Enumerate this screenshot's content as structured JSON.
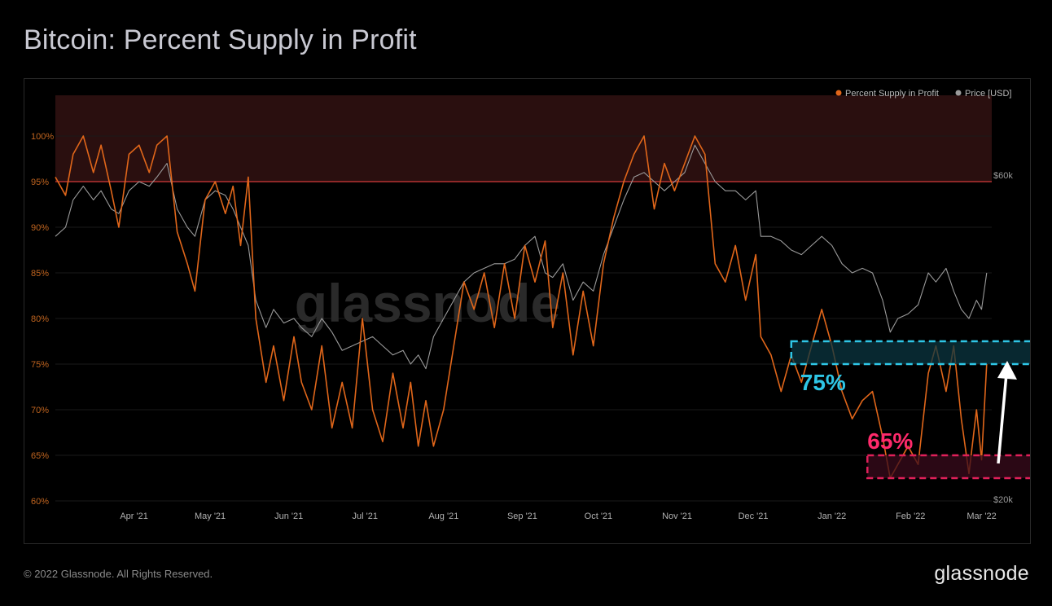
{
  "header": {
    "title": "Bitcoin: Percent Supply in Profit"
  },
  "footer": {
    "copyright": "© 2022 Glassnode. All Rights Reserved.",
    "logo": "glassnode"
  },
  "watermark": "glassnode",
  "colors": {
    "supply": "#e0661a",
    "price": "#9a9a9a",
    "band_high": "#2a0f0f",
    "line_95": "#d33a3a",
    "box_75": "#2ec6e6",
    "box_75_fill": "#0b3640",
    "box_65": "#e0205a",
    "box_65_fill": "#3a0b1c",
    "label_75": "#2ec6e6",
    "label_65": "#ff2a6b"
  },
  "chart_data": {
    "type": "line",
    "legend": [
      {
        "name": "Percent Supply in Profit",
        "color": "#e0661a"
      },
      {
        "name": "Price [USD]",
        "color": "#9a9a9a"
      }
    ],
    "legend_position": "top-right",
    "x_range": [
      "2021-03-01",
      "2022-03-05"
    ],
    "x_ticks": [
      "Apr '21",
      "May '21",
      "Jun '21",
      "Jul '21",
      "Aug '21",
      "Sep '21",
      "Oct '21",
      "Nov '21",
      "Dec '21",
      "Jan '22",
      "Feb '22",
      "Mar '22"
    ],
    "y_left": {
      "range": [
        60,
        100
      ],
      "ticks": [
        "60%",
        "65%",
        "70%",
        "75%",
        "80%",
        "85%",
        "90%",
        "95%",
        "100%"
      ]
    },
    "y_right": {
      "scale": "log",
      "ticks": [
        "$20k",
        "$60k"
      ]
    },
    "grid": true,
    "annotations": {
      "band_95_100": [
        95,
        100
      ],
      "box_75": {
        "label": "75%",
        "range": [
          75,
          77.5
        ],
        "start": "2021-12-16"
      },
      "box_65": {
        "label": "65%",
        "range": [
          62.5,
          65
        ],
        "start": "2022-01-15"
      },
      "arrow": "up"
    },
    "series": [
      {
        "name": "Percent Supply in Profit",
        "points": [
          [
            "2021-03-01",
            95.5
          ],
          [
            "2021-03-05",
            93.5
          ],
          [
            "2021-03-08",
            98
          ],
          [
            "2021-03-12",
            100
          ],
          [
            "2021-03-16",
            96
          ],
          [
            "2021-03-19",
            99
          ],
          [
            "2021-03-23",
            94
          ],
          [
            "2021-03-26",
            90
          ],
          [
            "2021-03-30",
            98
          ],
          [
            "2021-04-03",
            99
          ],
          [
            "2021-04-07",
            96
          ],
          [
            "2021-04-10",
            99
          ],
          [
            "2021-04-14",
            100
          ],
          [
            "2021-04-18",
            89.5
          ],
          [
            "2021-04-22",
            86
          ],
          [
            "2021-04-25",
            83
          ],
          [
            "2021-04-29",
            93
          ],
          [
            "2021-05-03",
            95
          ],
          [
            "2021-05-07",
            91.5
          ],
          [
            "2021-05-10",
            94.5
          ],
          [
            "2021-05-13",
            88
          ],
          [
            "2021-05-16",
            95.5
          ],
          [
            "2021-05-19",
            80
          ],
          [
            "2021-05-23",
            73
          ],
          [
            "2021-05-26",
            77
          ],
          [
            "2021-05-30",
            71
          ],
          [
            "2021-06-03",
            78
          ],
          [
            "2021-06-06",
            73
          ],
          [
            "2021-06-10",
            70
          ],
          [
            "2021-06-14",
            77
          ],
          [
            "2021-06-18",
            68
          ],
          [
            "2021-06-22",
            73
          ],
          [
            "2021-06-26",
            68
          ],
          [
            "2021-06-30",
            80
          ],
          [
            "2021-07-04",
            70
          ],
          [
            "2021-07-08",
            66.5
          ],
          [
            "2021-07-12",
            74
          ],
          [
            "2021-07-16",
            68
          ],
          [
            "2021-07-19",
            73
          ],
          [
            "2021-07-22",
            66
          ],
          [
            "2021-07-25",
            71
          ],
          [
            "2021-07-28",
            66
          ],
          [
            "2021-08-01",
            70
          ],
          [
            "2021-08-05",
            77
          ],
          [
            "2021-08-09",
            84
          ],
          [
            "2021-08-13",
            81
          ],
          [
            "2021-08-17",
            85
          ],
          [
            "2021-08-21",
            79
          ],
          [
            "2021-08-25",
            86
          ],
          [
            "2021-08-29",
            80
          ],
          [
            "2021-09-02",
            88
          ],
          [
            "2021-09-06",
            84
          ],
          [
            "2021-09-10",
            88.5
          ],
          [
            "2021-09-13",
            79
          ],
          [
            "2021-09-17",
            85
          ],
          [
            "2021-09-21",
            76
          ],
          [
            "2021-09-25",
            83
          ],
          [
            "2021-09-29",
            77
          ],
          [
            "2021-10-03",
            86
          ],
          [
            "2021-10-07",
            91
          ],
          [
            "2021-10-11",
            95
          ],
          [
            "2021-10-15",
            98
          ],
          [
            "2021-10-19",
            100
          ],
          [
            "2021-10-23",
            92
          ],
          [
            "2021-10-27",
            97
          ],
          [
            "2021-10-31",
            94
          ],
          [
            "2021-11-04",
            97
          ],
          [
            "2021-11-08",
            100
          ],
          [
            "2021-11-12",
            98
          ],
          [
            "2021-11-16",
            86
          ],
          [
            "2021-11-20",
            84
          ],
          [
            "2021-11-24",
            88
          ],
          [
            "2021-11-28",
            82
          ],
          [
            "2021-12-02",
            87
          ],
          [
            "2021-12-04",
            78
          ],
          [
            "2021-12-08",
            76
          ],
          [
            "2021-12-12",
            72
          ],
          [
            "2021-12-16",
            76
          ],
          [
            "2021-12-20",
            73
          ],
          [
            "2021-12-24",
            77
          ],
          [
            "2021-12-28",
            81
          ],
          [
            "2022-01-01",
            77
          ],
          [
            "2022-01-05",
            72
          ],
          [
            "2022-01-09",
            69
          ],
          [
            "2022-01-13",
            71
          ],
          [
            "2022-01-17",
            72
          ],
          [
            "2022-01-21",
            67
          ],
          [
            "2022-01-24",
            62.5
          ],
          [
            "2022-01-27",
            64
          ],
          [
            "2022-01-31",
            66
          ],
          [
            "2022-02-04",
            64
          ],
          [
            "2022-02-08",
            74
          ],
          [
            "2022-02-11",
            77
          ],
          [
            "2022-02-15",
            72
          ],
          [
            "2022-02-18",
            77
          ],
          [
            "2022-02-21",
            69
          ],
          [
            "2022-02-24",
            63
          ],
          [
            "2022-02-27",
            70
          ],
          [
            "2022-03-01",
            64.5
          ],
          [
            "2022-03-03",
            75
          ]
        ]
      },
      {
        "name": "Price [USD]",
        "points": [
          [
            "2021-03-01",
            89
          ],
          [
            "2021-03-05",
            90
          ],
          [
            "2021-03-08",
            93
          ],
          [
            "2021-03-12",
            94.5
          ],
          [
            "2021-03-16",
            93
          ],
          [
            "2021-03-19",
            94
          ],
          [
            "2021-03-23",
            92
          ],
          [
            "2021-03-26",
            91.5
          ],
          [
            "2021-03-30",
            94
          ],
          [
            "2021-04-03",
            95
          ],
          [
            "2021-04-07",
            94.5
          ],
          [
            "2021-04-10",
            95.5
          ],
          [
            "2021-04-14",
            97
          ],
          [
            "2021-04-18",
            92
          ],
          [
            "2021-04-22",
            90
          ],
          [
            "2021-04-25",
            89
          ],
          [
            "2021-04-29",
            93
          ],
          [
            "2021-05-03",
            94
          ],
          [
            "2021-05-07",
            93.5
          ],
          [
            "2021-05-10",
            92
          ],
          [
            "2021-05-13",
            90
          ],
          [
            "2021-05-16",
            88
          ],
          [
            "2021-05-19",
            82
          ],
          [
            "2021-05-23",
            79
          ],
          [
            "2021-05-26",
            81
          ],
          [
            "2021-05-30",
            79.5
          ],
          [
            "2021-06-03",
            80
          ],
          [
            "2021-06-06",
            79
          ],
          [
            "2021-06-10",
            78
          ],
          [
            "2021-06-14",
            80
          ],
          [
            "2021-06-18",
            78.5
          ],
          [
            "2021-06-22",
            76.5
          ],
          [
            "2021-06-26",
            77
          ],
          [
            "2021-06-30",
            77.5
          ],
          [
            "2021-07-04",
            78
          ],
          [
            "2021-07-08",
            77
          ],
          [
            "2021-07-12",
            76
          ],
          [
            "2021-07-16",
            76.5
          ],
          [
            "2021-07-19",
            75
          ],
          [
            "2021-07-22",
            76
          ],
          [
            "2021-07-25",
            74.5
          ],
          [
            "2021-07-28",
            78
          ],
          [
            "2021-08-01",
            80
          ],
          [
            "2021-08-05",
            82
          ],
          [
            "2021-08-09",
            84
          ],
          [
            "2021-08-13",
            85
          ],
          [
            "2021-08-17",
            85.5
          ],
          [
            "2021-08-21",
            86
          ],
          [
            "2021-08-25",
            86
          ],
          [
            "2021-08-29",
            86.5
          ],
          [
            "2021-09-02",
            88
          ],
          [
            "2021-09-06",
            89
          ],
          [
            "2021-09-10",
            85
          ],
          [
            "2021-09-13",
            84.5
          ],
          [
            "2021-09-17",
            86
          ],
          [
            "2021-09-21",
            82
          ],
          [
            "2021-09-25",
            84
          ],
          [
            "2021-09-29",
            83
          ],
          [
            "2021-10-03",
            87
          ],
          [
            "2021-10-07",
            90
          ],
          [
            "2021-10-11",
            93
          ],
          [
            "2021-10-15",
            95.5
          ],
          [
            "2021-10-19",
            96
          ],
          [
            "2021-10-23",
            95
          ],
          [
            "2021-10-27",
            94
          ],
          [
            "2021-10-31",
            95
          ],
          [
            "2021-11-04",
            96
          ],
          [
            "2021-11-08",
            99
          ],
          [
            "2021-11-12",
            97
          ],
          [
            "2021-11-16",
            95
          ],
          [
            "2021-11-20",
            94
          ],
          [
            "2021-11-24",
            94
          ],
          [
            "2021-11-28",
            93
          ],
          [
            "2021-12-02",
            94
          ],
          [
            "2021-12-04",
            89
          ],
          [
            "2021-12-08",
            89
          ],
          [
            "2021-12-12",
            88.5
          ],
          [
            "2021-12-16",
            87.5
          ],
          [
            "2021-12-20",
            87
          ],
          [
            "2021-12-24",
            88
          ],
          [
            "2021-12-28",
            89
          ],
          [
            "2022-01-01",
            88
          ],
          [
            "2022-01-05",
            86
          ],
          [
            "2022-01-09",
            85
          ],
          [
            "2022-01-13",
            85.5
          ],
          [
            "2022-01-17",
            85
          ],
          [
            "2022-01-21",
            82
          ],
          [
            "2022-01-24",
            78.5
          ],
          [
            "2022-01-27",
            80
          ],
          [
            "2022-01-31",
            80.5
          ],
          [
            "2022-02-04",
            81.5
          ],
          [
            "2022-02-08",
            85
          ],
          [
            "2022-02-11",
            84
          ],
          [
            "2022-02-15",
            85.5
          ],
          [
            "2022-02-18",
            83
          ],
          [
            "2022-02-21",
            81
          ],
          [
            "2022-02-24",
            80
          ],
          [
            "2022-02-27",
            82
          ],
          [
            "2022-03-01",
            81
          ],
          [
            "2022-03-03",
            85
          ]
        ]
      }
    ]
  }
}
